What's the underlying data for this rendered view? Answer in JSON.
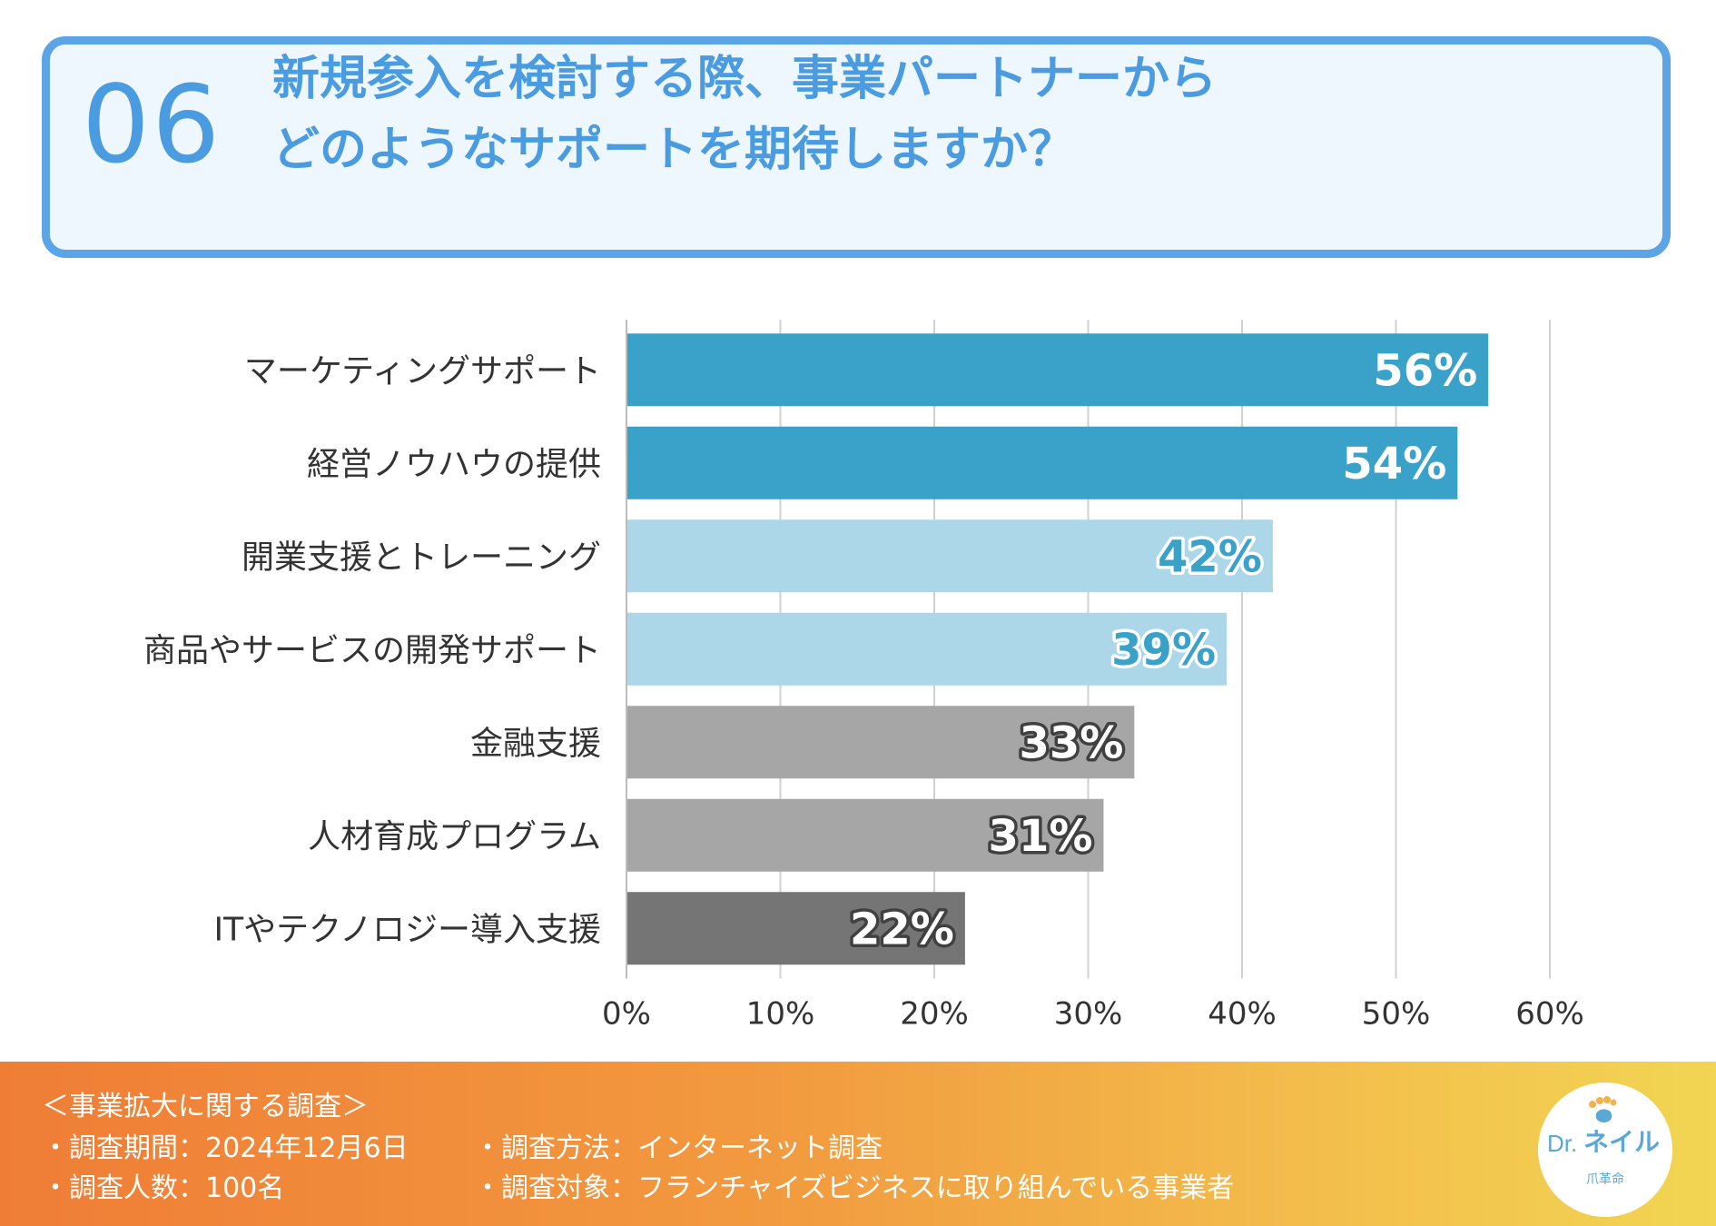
{
  "header": {
    "number": "06",
    "title_line1": "新規参入を検討する際、事業パートナーから",
    "title_line2": "どのようなサポートを期待しますか？"
  },
  "chart_data": {
    "type": "bar",
    "orientation": "horizontal",
    "title": "新規参入を検討する際、事業パートナーからどのようなサポートを期待しますか？",
    "categories": [
      "マーケティングサポート",
      "経営ノウハウの提供",
      "開業支援とトレーニング",
      "商品やサービスの開発サポート",
      "金融支援",
      "人材育成プログラム",
      "ITやテクノロジー導入支援"
    ],
    "values": [
      56,
      54,
      42,
      39,
      33,
      31,
      22
    ],
    "value_labels": [
      "56%",
      "54%",
      "42%",
      "39%",
      "33%",
      "31%",
      "22%"
    ],
    "bar_colors": [
      "#3aa2c8",
      "#3aa2c8",
      "#acd7e8",
      "#acd7e8",
      "#a6a6a6",
      "#a6a6a6",
      "#757575"
    ],
    "label_fill_colors": [
      "#ffffff",
      "#ffffff",
      "#3aa2c8",
      "#3aa2c8",
      "#ffffff",
      "#ffffff",
      "#ffffff"
    ],
    "label_stroke_colors": [
      "#3aa2c8",
      "#3aa2c8",
      "#ffffff",
      "#ffffff",
      "#404040",
      "#404040",
      "#404040"
    ],
    "xlim": [
      0,
      60
    ],
    "xticks": [
      0,
      10,
      20,
      30,
      40,
      50,
      60
    ],
    "xtick_labels": [
      "0%",
      "10%",
      "20%",
      "30%",
      "40%",
      "50%",
      "60%"
    ],
    "grid": true,
    "xlabel": "",
    "ylabel": ""
  },
  "footer": {
    "survey_title": "＜事業拡大に関する調査＞",
    "period": "・調査期間：2024年12月6日",
    "method": "・調査方法：インターネット調査",
    "respondents": "・調査人数：100名",
    "target": "・調査対象：フランチャイズビジネスに取り組んでいる事業者"
  },
  "logo": {
    "dr": "Dr.",
    "name": "ネイル",
    "sub": "爪革命",
    "registered": "®"
  }
}
